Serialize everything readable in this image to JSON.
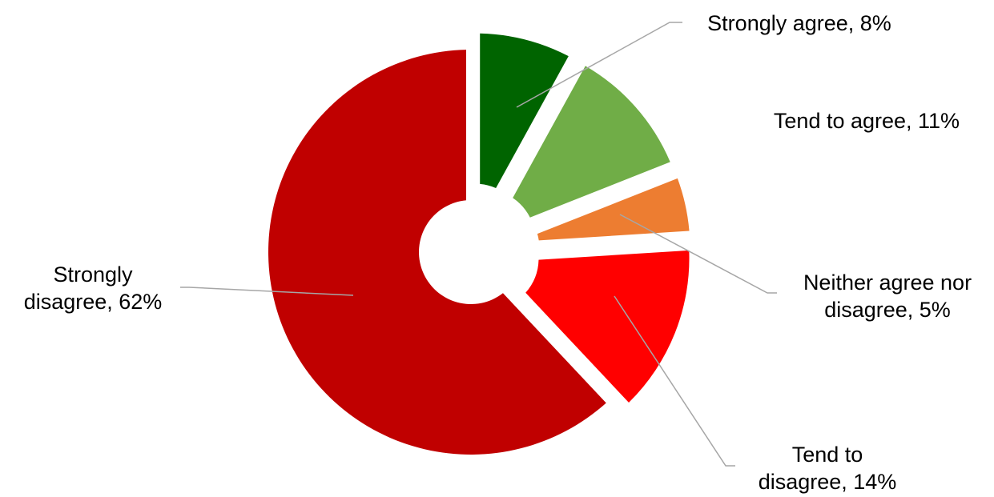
{
  "chart_data": {
    "type": "pie",
    "style": "exploded-donut",
    "title": "",
    "slices": [
      {
        "label": "Strongly agree, 8%",
        "category": "Strongly agree",
        "value": 8,
        "color": "#006400"
      },
      {
        "label": "Tend to agree, 11%",
        "category": "Tend to agree",
        "value": 11,
        "color": "#70ad47"
      },
      {
        "label": "Neither agree nor disagree, 5%",
        "category": "Neither agree nor disagree",
        "value": 5,
        "color": "#ed7d31"
      },
      {
        "label": "Tend to disagree, 14%",
        "category": "Tend to disagree",
        "value": 14,
        "color": "#ff0000"
      },
      {
        "label": "Strongly disagree, 62%",
        "category": "Strongly disagree",
        "value": 62,
        "color": "#c00000"
      }
    ],
    "legend": "none",
    "label_lines": [
      [
        "Strongly agree, 8%"
      ],
      [
        "Tend to agree, 11%"
      ],
      [
        "Neither agree nor",
        "disagree, 5%"
      ],
      [
        "Tend to",
        "disagree, 14%"
      ],
      [
        "Strongly",
        "disagree, 62%"
      ]
    ]
  }
}
